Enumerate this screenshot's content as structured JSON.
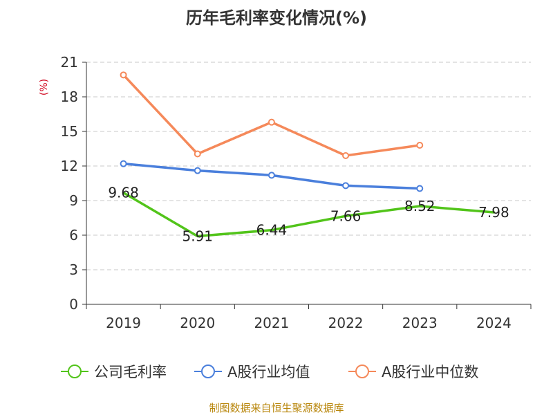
{
  "chart_data": {
    "type": "line",
    "title": "历年毛利率变化情况(%)",
    "ylabel": "(%)",
    "categories": [
      "2019",
      "2020",
      "2021",
      "2022",
      "2023",
      "2024"
    ],
    "ylim": [
      0,
      21
    ],
    "yticks": [
      0,
      3,
      6,
      9,
      12,
      15,
      18,
      21
    ],
    "grid": true,
    "legend_position": "bottom",
    "series": [
      {
        "name": "公司毛利率",
        "color": "#52c41a",
        "values": [
          9.68,
          5.91,
          6.44,
          7.66,
          8.52,
          7.98
        ],
        "labels": [
          "9.68",
          "5.91",
          "6.44",
          "7.66",
          "8.52",
          "7.98"
        ],
        "show_markers": false
      },
      {
        "name": "A股行业均值",
        "color": "#4a7fdc",
        "values": [
          12.2,
          11.6,
          11.2,
          10.3,
          10.05,
          null
        ],
        "show_markers": true
      },
      {
        "name": "A股行业中位数",
        "color": "#f5895a",
        "values": [
          19.9,
          13.05,
          15.8,
          12.9,
          13.8,
          null
        ],
        "show_markers": true
      }
    ],
    "source": "制图数据来自恒生聚源数据库"
  }
}
